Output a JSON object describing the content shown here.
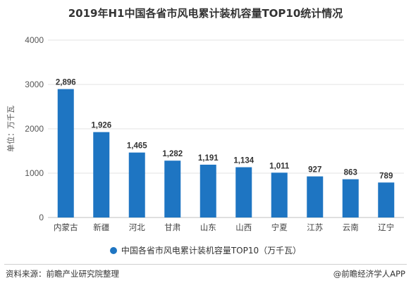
{
  "title": "2019年H1中国各省市风电累计装机容量TOP10统计情况",
  "source": "资料来源：前瞻产业研究院整理",
  "credit": "@前瞻经济学人APP",
  "colors": {
    "bar": "#1e75c2",
    "grid": "#e3e3e3",
    "axis": "#bfbfbf"
  },
  "chart_data": {
    "type": "bar",
    "title": "2019年H1中国各省市风电累计装机容量TOP10统计情况",
    "ylabel": "单位：万千瓦",
    "xlabel": "",
    "categories": [
      "内蒙古",
      "新疆",
      "河北",
      "甘肃",
      "山东",
      "山西",
      "宁夏",
      "江苏",
      "云南",
      "辽宁"
    ],
    "series": [
      {
        "name": "中国各省市风电累计装机容量TOP10（万千瓦）",
        "values": [
          2896,
          1926,
          1465,
          1282,
          1191,
          1134,
          1011,
          927,
          863,
          789
        ],
        "labels": [
          "2,896",
          "1,926",
          "1,465",
          "1,282",
          "1,191",
          "1,134",
          "1,011",
          "927",
          "863",
          "789"
        ]
      }
    ],
    "ylim": [
      0,
      4000
    ],
    "yticks": [
      0,
      1000,
      2000,
      3000,
      4000
    ],
    "grid": true,
    "legend": "bottom"
  }
}
